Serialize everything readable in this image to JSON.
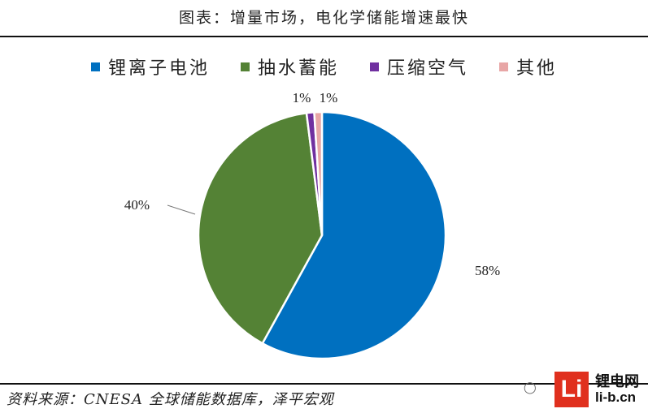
{
  "header": {
    "title": "图表：增量市场，电化学储能增速最快"
  },
  "footer": {
    "source": "资料来源：CNESA 全球储能数据库，泽平宏观"
  },
  "watermark": {
    "logo_text": "Li",
    "brand": "锂电网",
    "url": "li-b.cn",
    "chat_icon": "wechat-icon"
  },
  "colors": {
    "lithium": "#0070C0",
    "pumped_hydro": "#548235",
    "compressed_air": "#7030A0",
    "other": "#E8A6A6"
  },
  "chart_data": {
    "type": "pie",
    "title": "图表：增量市场，电化学储能增速最快",
    "legend_position": "top",
    "categories": [
      "锂离子电池",
      "抽水蓄能",
      "压缩空气",
      "其他"
    ],
    "values": [
      58,
      40,
      1,
      1
    ],
    "labels": [
      "58%",
      "40%",
      "1%",
      "1%"
    ],
    "colors": [
      "#0070C0",
      "#548235",
      "#7030A0",
      "#E8A6A6"
    ]
  }
}
